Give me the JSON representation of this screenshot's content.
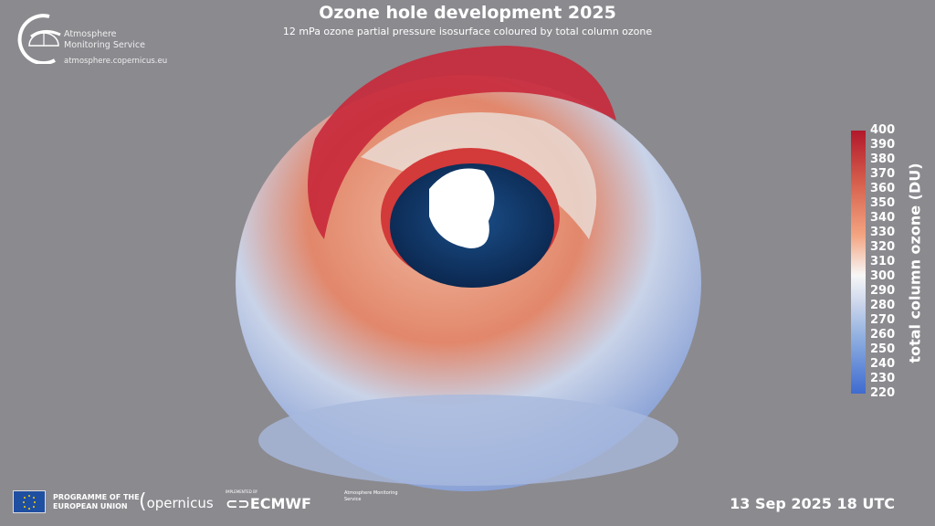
{
  "header": {
    "title": "Ozone hole development 2025",
    "subtitle": "12 mPa ozone partial pressure isosurface coloured by total column ozone"
  },
  "logo": {
    "line1": "Atmosphere",
    "line2": "Monitoring Service",
    "url": "atmosphere.copernicus.eu"
  },
  "colorbar": {
    "label": "total column ozone (DU)",
    "ticks": [
      "400",
      "390",
      "380",
      "370",
      "360",
      "350",
      "340",
      "330",
      "320",
      "310",
      "300",
      "290",
      "280",
      "270",
      "260",
      "250",
      "240",
      "230",
      "220"
    ],
    "min": 220,
    "max": 400,
    "colors": [
      "#b2182b",
      "#f4a582",
      "#f7f7f7",
      "#92b1e0",
      "#3e6bd0"
    ]
  },
  "timestamp": "13 Sep 2025 18 UTC",
  "footer": {
    "eu_line1": "PROGRAMME OF THE",
    "eu_line2": "EUROPEAN UNION",
    "copernicus": "opernicus",
    "ecmwf_small": "IMPLEMENTED BY",
    "ecmwf": "ECMWF",
    "cams": "Atmosphere Monitoring Service"
  },
  "background": "#8b8a8f"
}
